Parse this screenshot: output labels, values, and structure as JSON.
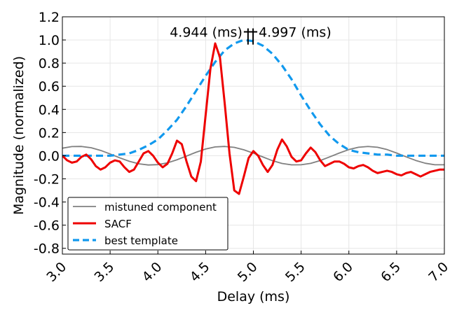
{
  "chart_data": {
    "type": "line",
    "xlabel": "Delay (ms)",
    "ylabel": "Magnitude (normalized)",
    "xlim": [
      3.0,
      7.0
    ],
    "ylim": [
      -0.85,
      1.2
    ],
    "xticks": [
      "3.0",
      "3.5",
      "4.0",
      "4.5",
      "5.0",
      "5.5",
      "6.0",
      "6.5",
      "7.0"
    ],
    "yticks": [
      "1.2",
      "1.0",
      "0.8",
      "0.6",
      "0.4",
      "0.2",
      "0.0",
      "-0.2",
      "-0.4",
      "-0.6",
      "-0.8"
    ],
    "grid": true,
    "legend_position": "bottom-left",
    "annotations": {
      "left": "4.944 (ms)",
      "right": "4.997 (ms)",
      "left_x": 4.944,
      "right_x": 4.997
    },
    "series": [
      {
        "name": "mistuned component",
        "color": "#808080",
        "style": "solid",
        "x": [
          3.0,
          3.1,
          3.2,
          3.3,
          3.4,
          3.5,
          3.6,
          3.7,
          3.8,
          3.9,
          4.0,
          4.1,
          4.2,
          4.3,
          4.4,
          4.5,
          4.6,
          4.7,
          4.8,
          4.9,
          5.0,
          5.1,
          5.2,
          5.3,
          5.4,
          5.5,
          5.6,
          5.7,
          5.8,
          5.9,
          6.0,
          6.1,
          6.2,
          6.3,
          6.4,
          6.5,
          6.6,
          6.7,
          6.8,
          6.9,
          7.0
        ],
        "y": [
          0.065,
          0.079,
          0.08,
          0.069,
          0.046,
          0.015,
          -0.018,
          -0.048,
          -0.07,
          -0.08,
          -0.077,
          -0.062,
          -0.035,
          -0.003,
          0.03,
          0.058,
          0.076,
          0.08,
          0.072,
          0.051,
          0.022,
          -0.011,
          -0.043,
          -0.067,
          -0.079,
          -0.078,
          -0.066,
          -0.042,
          -0.01,
          0.023,
          0.053,
          0.073,
          0.08,
          0.073,
          0.053,
          0.023,
          -0.01,
          -0.041,
          -0.065,
          -0.078,
          -0.078
        ]
      },
      {
        "name": "SACF",
        "color": "#ee0000",
        "style": "solid",
        "x": [
          3.0,
          3.05,
          3.1,
          3.15,
          3.2,
          3.25,
          3.3,
          3.35,
          3.4,
          3.45,
          3.5,
          3.55,
          3.6,
          3.65,
          3.7,
          3.75,
          3.8,
          3.85,
          3.9,
          3.95,
          4.0,
          4.05,
          4.1,
          4.15,
          4.2,
          4.25,
          4.3,
          4.35,
          4.4,
          4.45,
          4.5,
          4.55,
          4.6,
          4.65,
          4.7,
          4.75,
          4.8,
          4.85,
          4.9,
          4.95,
          5.0,
          5.05,
          5.1,
          5.15,
          5.2,
          5.25,
          5.3,
          5.35,
          5.4,
          5.45,
          5.5,
          5.55,
          5.6,
          5.65,
          5.7,
          5.75,
          5.8,
          5.85,
          5.9,
          5.95,
          6.0,
          6.05,
          6.1,
          6.15,
          6.2,
          6.25,
          6.3,
          6.35,
          6.4,
          6.45,
          6.5,
          6.55,
          6.6,
          6.65,
          6.7,
          6.75,
          6.8,
          6.85,
          6.9,
          6.95,
          7.0
        ],
        "y": [
          0.0,
          -0.04,
          -0.06,
          -0.05,
          -0.01,
          0.01,
          -0.03,
          -0.09,
          -0.12,
          -0.1,
          -0.06,
          -0.04,
          -0.05,
          -0.1,
          -0.14,
          -0.12,
          -0.05,
          0.02,
          0.04,
          0.0,
          -0.06,
          -0.1,
          -0.07,
          0.02,
          0.13,
          0.1,
          -0.05,
          -0.18,
          -0.22,
          -0.05,
          0.35,
          0.75,
          0.97,
          0.85,
          0.45,
          0.02,
          -0.3,
          -0.33,
          -0.18,
          -0.02,
          0.04,
          0.0,
          -0.08,
          -0.14,
          -0.08,
          0.05,
          0.14,
          0.08,
          -0.01,
          -0.05,
          -0.04,
          0.02,
          0.07,
          0.03,
          -0.04,
          -0.09,
          -0.07,
          -0.05,
          -0.05,
          -0.07,
          -0.1,
          -0.11,
          -0.09,
          -0.08,
          -0.1,
          -0.13,
          -0.15,
          -0.14,
          -0.13,
          -0.14,
          -0.16,
          -0.17,
          -0.15,
          -0.14,
          -0.16,
          -0.18,
          -0.16,
          -0.14,
          -0.13,
          -0.12,
          -0.12
        ]
      },
      {
        "name": "best template",
        "color": "#1199ee",
        "style": "dashed",
        "x": [
          3.0,
          3.1,
          3.2,
          3.3,
          3.4,
          3.5,
          3.6,
          3.7,
          3.8,
          3.9,
          4.0,
          4.1,
          4.2,
          4.3,
          4.4,
          4.5,
          4.6,
          4.7,
          4.8,
          4.9,
          5.0,
          5.1,
          5.2,
          5.3,
          5.4,
          5.5,
          5.6,
          5.7,
          5.8,
          5.9,
          6.0,
          6.1,
          6.2,
          6.3,
          6.4,
          6.5,
          6.6,
          6.7,
          6.8,
          6.9,
          7.0
        ],
        "y": [
          0.0,
          0.0,
          0.0,
          0.0,
          0.0,
          0.0,
          0.01,
          0.02,
          0.05,
          0.09,
          0.14,
          0.22,
          0.31,
          0.43,
          0.56,
          0.69,
          0.81,
          0.91,
          0.97,
          1.0,
          0.99,
          0.95,
          0.88,
          0.78,
          0.66,
          0.52,
          0.39,
          0.27,
          0.17,
          0.1,
          0.05,
          0.03,
          0.02,
          0.01,
          0.01,
          0.0,
          0.0,
          0.0,
          0.0,
          0.0,
          0.0
        ]
      }
    ]
  }
}
